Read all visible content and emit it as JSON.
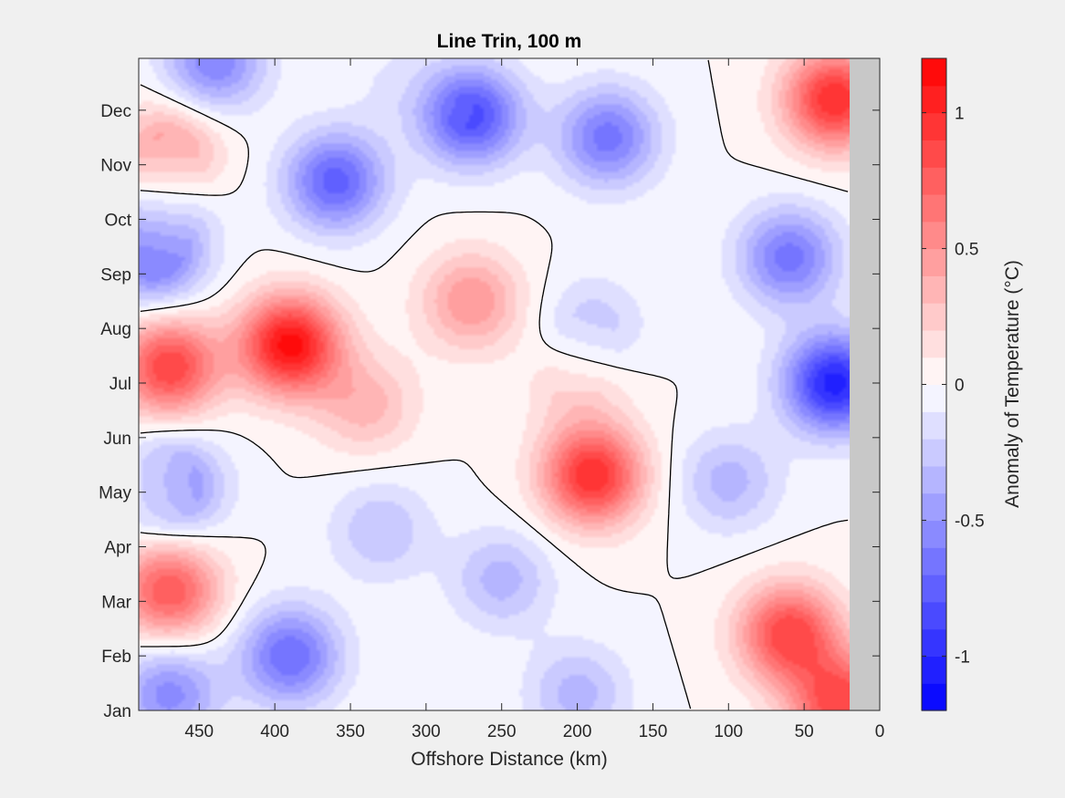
{
  "chart_data": {
    "type": "heatmap",
    "subtype": "filled-contour",
    "title": "Line Trin, 100 m",
    "xlabel": "Offshore Distance (km)",
    "colorbar_label": "Anomaly of Temperature (°C)",
    "x_reversed": true,
    "xlim": [
      490,
      0
    ],
    "ylim": [
      0,
      11.95
    ],
    "x_ticks": [
      450,
      400,
      350,
      300,
      250,
      200,
      150,
      100,
      50,
      0
    ],
    "x_tick_labels": [
      "450",
      "400",
      "350",
      "300",
      "250",
      "200",
      "150",
      "100",
      "50",
      "0"
    ],
    "y_ticks": [
      0,
      1,
      2,
      3,
      4,
      5,
      6,
      7,
      8,
      9,
      10,
      11
    ],
    "y_tick_labels": [
      "Jan",
      "Feb",
      "Mar",
      "Apr",
      "May",
      "Jun",
      "Jul",
      "Aug",
      "Sep",
      "Oct",
      "Nov",
      "Dec"
    ],
    "colorbar_ticks": [
      -1,
      -0.5,
      0,
      0.5,
      1
    ],
    "colorbar_tick_labels": [
      "-1",
      "-0.5",
      "0",
      "0.5",
      "1"
    ],
    "clim": [
      -1.2,
      1.2
    ],
    "contour_levels_count": 24,
    "zero_contour_color": "#000000",
    "land_mask": {
      "x_range": [
        20,
        0
      ],
      "color": "#c8c8c8"
    },
    "colormap": {
      "negative_end": "#0000ff",
      "zero": "#ffffff",
      "positive_end": "#ff0000"
    },
    "approx_anomaly_centers": [
      {
        "x": 390,
        "y": 6.7,
        "value": 1.15
      },
      {
        "x": 470,
        "y": 6.3,
        "value": 0.9
      },
      {
        "x": 190,
        "y": 4.3,
        "value": 1.0
      },
      {
        "x": 270,
        "y": 7.5,
        "value": 0.5
      },
      {
        "x": 340,
        "y": 5.6,
        "value": 0.35
      },
      {
        "x": 60,
        "y": 1.4,
        "value": 0.9
      },
      {
        "x": 25,
        "y": 0.1,
        "value": 0.9
      },
      {
        "x": 30,
        "y": 11.2,
        "value": 1.0
      },
      {
        "x": 470,
        "y": 2.2,
        "value": 0.8
      },
      {
        "x": 470,
        "y": 10.2,
        "value": 0.55
      },
      {
        "x": 485,
        "y": 4.1,
        "value": 0.2
      },
      {
        "x": 200,
        "y": 6.0,
        "value": 0.25
      },
      {
        "x": 390,
        "y": 1.0,
        "value": -0.7
      },
      {
        "x": 470,
        "y": 0.3,
        "value": -0.55
      },
      {
        "x": 470,
        "y": 4.1,
        "value": -0.75
      },
      {
        "x": 480,
        "y": 8.3,
        "value": -0.65
      },
      {
        "x": 360,
        "y": 9.7,
        "value": -0.75
      },
      {
        "x": 270,
        "y": 10.9,
        "value": -0.85
      },
      {
        "x": 180,
        "y": 10.5,
        "value": -0.65
      },
      {
        "x": 440,
        "y": 11.9,
        "value": -0.6
      },
      {
        "x": 30,
        "y": 6.0,
        "value": -1.05
      },
      {
        "x": 60,
        "y": 8.3,
        "value": -0.65
      },
      {
        "x": 100,
        "y": 4.2,
        "value": -0.35
      },
      {
        "x": 250,
        "y": 2.4,
        "value": -0.35
      },
      {
        "x": 330,
        "y": 3.3,
        "value": -0.3
      },
      {
        "x": 190,
        "y": 7.0,
        "value": -0.3
      },
      {
        "x": 200,
        "y": 0.3,
        "value": -0.35
      },
      {
        "x": 320,
        "y": 11.5,
        "value": -0.1
      },
      {
        "x": 470,
        "y": 9.3,
        "value": -0.2
      }
    ]
  }
}
